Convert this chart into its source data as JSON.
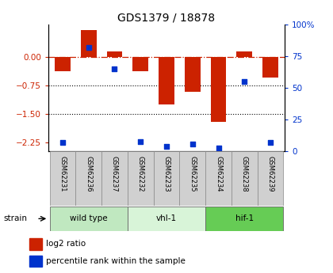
{
  "title": "GDS1379 / 18878",
  "samples": [
    "GSM62231",
    "GSM62236",
    "GSM62237",
    "GSM62232",
    "GSM62233",
    "GSM62235",
    "GSM62234",
    "GSM62238",
    "GSM62239"
  ],
  "log2_ratio": [
    -0.38,
    0.7,
    0.15,
    -0.38,
    -1.25,
    -0.92,
    -1.72,
    0.15,
    -0.55
  ],
  "percentile_rank": [
    7,
    82,
    65,
    8,
    4,
    6,
    3,
    55,
    7
  ],
  "groups": [
    {
      "label": "wild type",
      "indices": [
        0,
        1,
        2
      ]
    },
    {
      "label": "vhl-1",
      "indices": [
        3,
        4,
        5
      ]
    },
    {
      "label": "hif-1",
      "indices": [
        6,
        7,
        8
      ]
    }
  ],
  "ylim_left": [
    -2.5,
    0.85
  ],
  "ylim_right": [
    0,
    100
  ],
  "yticks_left": [
    0,
    -0.75,
    -1.5,
    -2.25
  ],
  "yticks_right": [
    0,
    25,
    50,
    75,
    100
  ],
  "bar_color": "#cc2200",
  "dot_color": "#0033cc",
  "dotted_lines": [
    -0.75,
    -1.5
  ],
  "group_colors": [
    "#c0e8c0",
    "#d8f4d8",
    "#66cc55"
  ],
  "bar_width": 0.6,
  "xlim": [
    -0.55,
    8.55
  ]
}
